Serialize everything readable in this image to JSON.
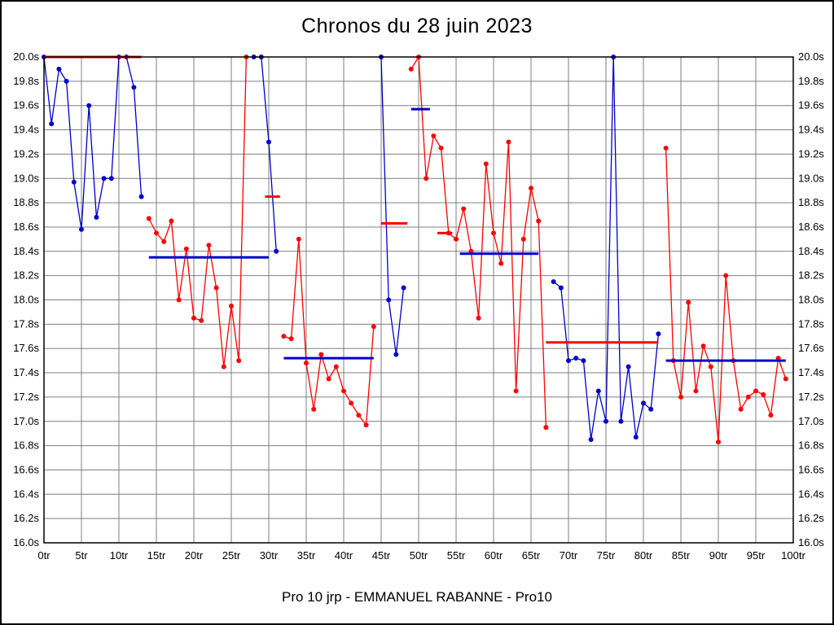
{
  "chart_data": {
    "type": "line",
    "title": "Chronos du 28 juin 2023",
    "subtitle": "Pro 10 jrp - EMMANUEL RABANNE - Pro10",
    "xlabel": "",
    "ylabel": "",
    "xlim": [
      0,
      100
    ],
    "ylim": [
      16.0,
      20.0
    ],
    "x_unit": "tr",
    "y_unit": "s",
    "grid": true,
    "grid_color": "#7f7f7f",
    "legend": "none",
    "colors": {
      "red": "#ff0000",
      "blue": "#0000cc"
    },
    "x_ticks": [
      "0tr",
      "5tr",
      "10tr",
      "15tr",
      "20tr",
      "25tr",
      "30tr",
      "35tr",
      "40tr",
      "45tr",
      "50tr",
      "55tr",
      "60tr",
      "65tr",
      "70tr",
      "75tr",
      "80tr",
      "85tr",
      "90tr",
      "95tr",
      "100tr"
    ],
    "y_ticks": [
      "16.0s",
      "16.2s",
      "16.4s",
      "16.6s",
      "16.8s",
      "17.0s",
      "17.2s",
      "17.4s",
      "17.6s",
      "17.8s",
      "18.0s",
      "18.2s",
      "18.4s",
      "18.6s",
      "18.8s",
      "19.0s",
      "19.2s",
      "19.4s",
      "19.6s",
      "19.8s",
      "20.0s"
    ],
    "segments": [
      {
        "color": "blue",
        "start_lap": 0,
        "values": [
          20.0,
          19.45,
          19.9,
          19.8,
          18.97,
          18.58,
          19.6,
          18.68,
          19.0,
          19.0,
          20.0,
          20.0,
          19.75,
          18.85
        ]
      },
      {
        "color": "red",
        "start_lap": 14,
        "values": [
          18.67,
          18.55,
          18.48,
          18.65,
          18.0,
          18.42,
          17.85,
          17.83,
          18.45,
          18.1,
          17.45,
          17.95,
          17.5,
          20.0
        ]
      },
      {
        "color": "blue",
        "start_lap": 28,
        "values": [
          20.0,
          20.0,
          19.3,
          18.4
        ]
      },
      {
        "color": "red",
        "start_lap": 32,
        "values": [
          17.7,
          17.68,
          18.5,
          17.48,
          17.1,
          17.55,
          17.35,
          17.45,
          17.25,
          17.15,
          17.05,
          16.97,
          17.78
        ]
      },
      {
        "color": "blue",
        "start_lap": 45,
        "values": [
          20.0,
          18.0,
          17.55,
          18.1
        ]
      },
      {
        "color": "red",
        "start_lap": 49,
        "values": [
          19.9,
          20.0,
          19.0,
          19.35,
          19.25,
          18.55,
          18.5,
          18.75,
          18.4,
          17.85,
          19.12,
          18.55,
          18.3,
          19.3,
          17.25,
          18.5,
          18.92,
          18.65,
          16.95
        ]
      },
      {
        "color": "blue",
        "start_lap": 68,
        "values": [
          18.15,
          18.1,
          17.5,
          17.52,
          17.5,
          16.85,
          17.25,
          17.0,
          20.0,
          17.0,
          17.45,
          16.87,
          17.15,
          17.1,
          17.72
        ]
      },
      {
        "color": "red",
        "start_lap": 83,
        "values": [
          19.25,
          17.5,
          17.2,
          17.98,
          17.25,
          17.62,
          17.45,
          16.83,
          18.2,
          17.5,
          17.1,
          17.2,
          17.25,
          17.22,
          17.05,
          17.52,
          17.35
        ]
      }
    ],
    "avg_lines": [
      {
        "x1": 0,
        "x2": 13,
        "y": 20.0,
        "color": "red"
      },
      {
        "x1": 14,
        "x2": 30,
        "y": 18.35,
        "color": "blue"
      },
      {
        "x1": 29.5,
        "x2": 31.5,
        "y": 18.85,
        "color": "red"
      },
      {
        "x1": 32,
        "x2": 44,
        "y": 17.52,
        "color": "blue"
      },
      {
        "x1": 45,
        "x2": 48.5,
        "y": 18.63,
        "color": "red"
      },
      {
        "x1": 49,
        "x2": 51.5,
        "y": 19.57,
        "color": "blue"
      },
      {
        "x1": 52.5,
        "x2": 54.5,
        "y": 18.55,
        "color": "red"
      },
      {
        "x1": 55.5,
        "x2": 66,
        "y": 18.38,
        "color": "blue"
      },
      {
        "x1": 67,
        "x2": 82,
        "y": 17.65,
        "color": "red"
      },
      {
        "x1": 83,
        "x2": 99,
        "y": 17.5,
        "color": "blue"
      }
    ]
  }
}
